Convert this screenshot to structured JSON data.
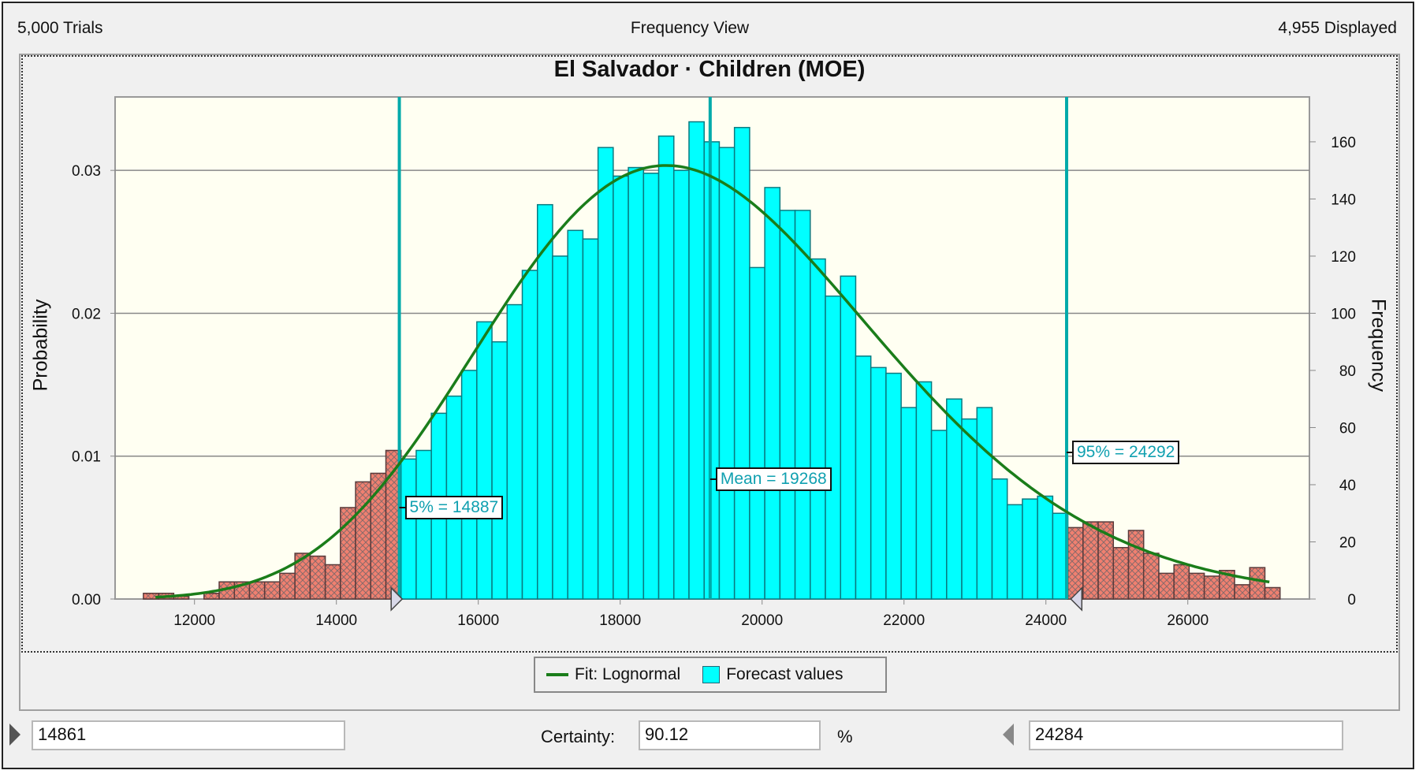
{
  "header": {
    "trials": "5,000 Trials",
    "view": "Frequency View",
    "displayed": "4,955 Displayed"
  },
  "chart_data": {
    "type": "bar",
    "title": "El Salvador · Children (MOE)",
    "ylabel_left": "Probability",
    "ylabel_right": "Frequency",
    "xlim": [
      10881,
      27714
    ],
    "ylim_frequency": [
      0,
      175.7
    ],
    "ylim_probability": [
      0,
      0.03514
    ],
    "x_ticks": [
      12000,
      14000,
      16000,
      18000,
      20000,
      22000,
      24000,
      26000
    ],
    "y_left_ticks": [
      {
        "value": 0,
        "label": "0.00"
      },
      {
        "value": 0.01,
        "label": "0.01"
      },
      {
        "value": 0.02,
        "label": "0.02"
      },
      {
        "value": 0.03,
        "label": "0.03"
      }
    ],
    "y_right_ticks": [
      0,
      20,
      40,
      60,
      80,
      100,
      120,
      140,
      160
    ],
    "grid": "horizontal at probability ticks",
    "bins": {
      "start": 11280,
      "width": 213.6,
      "frequencies": [
        2,
        2,
        1,
        0,
        2,
        6,
        6,
        6,
        6,
        9,
        16,
        15,
        12,
        32,
        41,
        44,
        52,
        49,
        52,
        65,
        71,
        80,
        97,
        90,
        103,
        115,
        138,
        120,
        129,
        126,
        158,
        148,
        151,
        149,
        162,
        150,
        167,
        160,
        158,
        165,
        116,
        144,
        136,
        136,
        119,
        106,
        113,
        85,
        81,
        79,
        67,
        76,
        59,
        70,
        63,
        67,
        42,
        33,
        35,
        36,
        30,
        25,
        27,
        27,
        18,
        24,
        16,
        9,
        12,
        9,
        8,
        10,
        5,
        11,
        4
      ]
    },
    "fit": {
      "distribution": "Lognormal",
      "mean": 19268,
      "std_dev": 2860,
      "x_range": [
        11450,
        27150
      ]
    },
    "markers": [
      {
        "label": "5% = 14887",
        "value": 14887
      },
      {
        "label": "Mean = 19268",
        "value": 19268
      },
      {
        "label": "95% = 24292",
        "value": 24292
      }
    ],
    "legend": {
      "placement": "bottom",
      "fit_label": "Fit: Lognormal",
      "values_label": "Forecast values"
    },
    "colors": {
      "in_range": "#00ffff",
      "out_of_range": "#f08070",
      "fit": "#1a7d1a",
      "markers": "#00aaaa",
      "background": "#fffff2"
    }
  },
  "controls": {
    "lower_value": "14861",
    "certainty_label": "Certainty:",
    "certainty_value": "90.12",
    "percent": "%",
    "upper_value": "24284"
  }
}
